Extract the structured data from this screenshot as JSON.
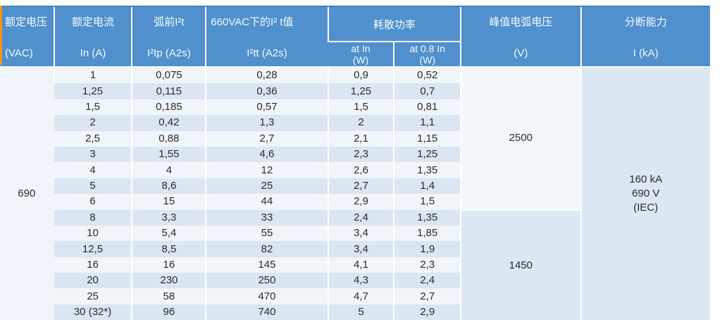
{
  "table": {
    "header": {
      "col_voltage": {
        "line1": "额定电压",
        "line2": "(VAC)"
      },
      "col_current": {
        "line1": "额定电流",
        "line2": "In (A)"
      },
      "col_prearc": {
        "line1": "弧前I²t",
        "line2": "I²tp (A2s)"
      },
      "col_660vac": {
        "line1": "660VAC下的I² t值",
        "line2": "I²tt (A2s)"
      },
      "group_power": {
        "label": "耗散功率",
        "sub_at_in": {
          "line1": "at In",
          "line2": "(W)"
        },
        "sub_at_08in": {
          "line1": "at 0.8  In",
          "line2": "(W)"
        }
      },
      "col_peak_arc": {
        "line1": "峰值电弧电压",
        "line2": "(V)"
      },
      "col_breaking": {
        "line1": "分断能力",
        "line2": "I (kA)"
      }
    },
    "merged": {
      "rated_voltage": "690",
      "peak_arc_group1": "2500",
      "peak_arc_group2": "1450",
      "breaking_capacity": {
        "line1": "160 kA",
        "line2": "690 V",
        "line3": "(IEC)"
      }
    },
    "rows": [
      {
        "in": "1",
        "i2tp": "0,075",
        "i2tt": "0,28",
        "p_in": "0,9",
        "p_08in": "0,52"
      },
      {
        "in": "1,25",
        "i2tp": "0,115",
        "i2tt": "0,36",
        "p_in": "1,25",
        "p_08in": "0,7"
      },
      {
        "in": "1,5",
        "i2tp": "0,185",
        "i2tt": "0,57",
        "p_in": "1,5",
        "p_08in": "0,81"
      },
      {
        "in": "2",
        "i2tp": "0,42",
        "i2tt": "1,3",
        "p_in": "2",
        "p_08in": "1,1"
      },
      {
        "in": "2,5",
        "i2tp": "0,88",
        "i2tt": "2,7",
        "p_in": "2,1",
        "p_08in": "1,15"
      },
      {
        "in": "3",
        "i2tp": "1,55",
        "i2tt": "4,6",
        "p_in": "2,3",
        "p_08in": "1,25"
      },
      {
        "in": "4",
        "i2tp": "4",
        "i2tt": "12",
        "p_in": "2,6",
        "p_08in": "1,35"
      },
      {
        "in": "5",
        "i2tp": "8,6",
        "i2tt": "25",
        "p_in": "2,7",
        "p_08in": "1,4"
      },
      {
        "in": "6",
        "i2tp": "15",
        "i2tt": "44",
        "p_in": "2,9",
        "p_08in": "1,5"
      },
      {
        "in": "8",
        "i2tp": "3,3",
        "i2tt": "33",
        "p_in": "2,4",
        "p_08in": "1,35"
      },
      {
        "in": "10",
        "i2tp": "5,4",
        "i2tt": "55",
        "p_in": "3,4",
        "p_08in": "1,85"
      },
      {
        "in": "12,5",
        "i2tp": "8,5",
        "i2tt": "82",
        "p_in": "3,4",
        "p_08in": "1,9"
      },
      {
        "in": "16",
        "i2tp": "16",
        "i2tt": "145",
        "p_in": "4,1",
        "p_08in": "2,3"
      },
      {
        "in": "20",
        "i2tp": "230",
        "i2tt": "250",
        "p_in": "4,3",
        "p_08in": "2,4"
      },
      {
        "in": "25",
        "i2tp": "58",
        "i2tt": "470",
        "p_in": "4,7",
        "p_08in": "2,7"
      },
      {
        "in": "30 (32*)",
        "i2tp": "96",
        "i2tt": "740",
        "p_in": "5",
        "p_08in": "2,9"
      }
    ],
    "arc_group1_row_count": 9,
    "arc_group2_row_count": 7
  },
  "colors": {
    "header_bg": "#4f90cd",
    "row_light": "#f0f5fa",
    "row_dark": "#dae6f2",
    "merged_arc_light": "#f2f7fc",
    "merged_arc_blue": "#dce8f4",
    "breaking_bg": "#dbe7f3",
    "accent_orange": "#f7941d",
    "header_text": "#f6fbff",
    "body_text": "#2b2b2b"
  }
}
